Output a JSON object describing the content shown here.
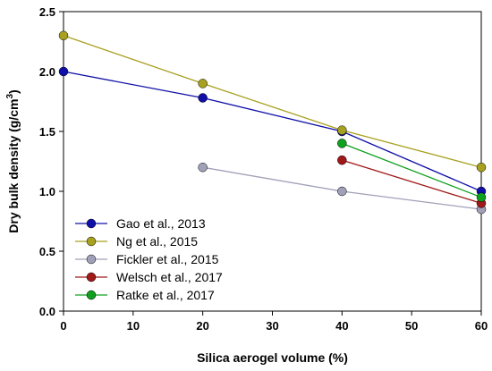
{
  "chart_data": {
    "type": "line",
    "xlabel": "Silica aerogel volume (%)",
    "ylabel": {
      "prefix": "Dry bulk density (g/cm",
      "superscript": "3",
      "suffix": ")"
    },
    "xlim": [
      0,
      60
    ],
    "ylim": [
      0.0,
      2.5
    ],
    "xticks": [
      0,
      10,
      20,
      30,
      40,
      50,
      60
    ],
    "yticks": [
      0.0,
      0.5,
      1.0,
      1.5,
      2.0,
      2.5
    ],
    "ytick_labels": [
      "0.0",
      "0.5",
      "1.0",
      "1.5",
      "2.0",
      "2.5"
    ],
    "grid": false,
    "legend_position": "bottom-left",
    "series": [
      {
        "name": "Gao et al., 2013",
        "color": "#1010a8",
        "x": [
          0,
          20,
          40,
          60
        ],
        "y": [
          2.0,
          1.78,
          1.5,
          1.0
        ]
      },
      {
        "name": "Ng et al., 2015",
        "color": "#a8a020",
        "x": [
          0,
          20,
          40,
          60
        ],
        "y": [
          2.3,
          1.9,
          1.51,
          1.2
        ]
      },
      {
        "name": "Fickler et al., 2015",
        "color": "#a0a0b8",
        "x": [
          20,
          40,
          60
        ],
        "y": [
          1.2,
          1.0,
          0.85
        ]
      },
      {
        "name": "Welsch et al., 2017",
        "color": "#a01818",
        "x": [
          40,
          60
        ],
        "y": [
          1.26,
          0.9
        ]
      },
      {
        "name": "Ratke et al., 2017",
        "color": "#10a020",
        "x": [
          40,
          60
        ],
        "y": [
          1.4,
          0.95
        ]
      }
    ]
  }
}
